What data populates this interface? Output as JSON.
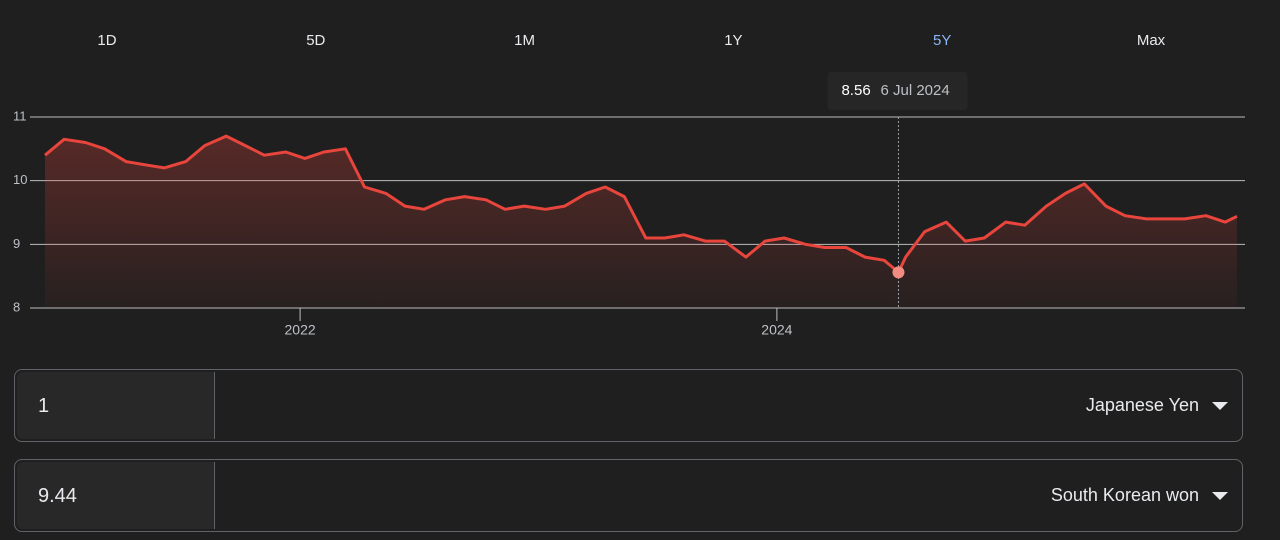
{
  "tabs": {
    "items": [
      "1D",
      "5D",
      "1M",
      "1Y",
      "5Y",
      "Max"
    ],
    "selected": 4
  },
  "chart_data": {
    "type": "line",
    "color": "#e8453c",
    "x": [
      2020.93,
      2021.01,
      2021.1,
      2021.18,
      2021.27,
      2021.35,
      2021.43,
      2021.52,
      2021.6,
      2021.69,
      2021.77,
      2021.85,
      2021.94,
      2022.02,
      2022.1,
      2022.19,
      2022.27,
      2022.36,
      2022.44,
      2022.52,
      2022.61,
      2022.69,
      2022.78,
      2022.86,
      2022.94,
      2023.03,
      2023.11,
      2023.2,
      2023.28,
      2023.36,
      2023.45,
      2023.53,
      2023.61,
      2023.7,
      2023.78,
      2023.87,
      2023.95,
      2024.03,
      2024.12,
      2024.2,
      2024.29,
      2024.37,
      2024.45,
      2024.51,
      2024.54,
      2024.62,
      2024.71,
      2024.79,
      2024.87,
      2024.96,
      2025.04,
      2025.13,
      2025.21,
      2025.29,
      2025.38,
      2025.46,
      2025.55,
      2025.63,
      2025.71,
      2025.8,
      2025.88,
      2025.93
    ],
    "values": [
      10.4,
      10.65,
      10.6,
      10.5,
      10.3,
      10.25,
      10.2,
      10.3,
      10.55,
      10.7,
      10.55,
      10.4,
      10.45,
      10.35,
      10.45,
      10.5,
      9.9,
      9.8,
      9.6,
      9.55,
      9.7,
      9.75,
      9.7,
      9.55,
      9.6,
      9.55,
      9.6,
      9.8,
      9.9,
      9.75,
      9.1,
      9.1,
      9.15,
      9.05,
      9.05,
      8.8,
      9.05,
      9.1,
      9.0,
      8.95,
      8.95,
      8.8,
      8.75,
      8.56,
      8.8,
      9.2,
      9.35,
      9.05,
      9.1,
      9.35,
      9.3,
      9.6,
      9.8,
      9.95,
      9.6,
      9.45,
      9.4,
      9.4,
      9.4,
      9.45,
      9.35,
      9.44
    ],
    "xlim": [
      2020.93,
      2025.93
    ],
    "xticks": [
      2022,
      2024
    ],
    "ylim": [
      8,
      11
    ],
    "yticks": [
      8,
      9,
      10,
      11
    ],
    "grid": true,
    "tooltip": {
      "index": 43,
      "value": 8.56,
      "date": "6 Jul 2024"
    }
  },
  "converter": {
    "from": {
      "amount": "1",
      "currency": "Japanese Yen"
    },
    "to": {
      "amount": "9.44",
      "currency": "South Korean won"
    }
  }
}
